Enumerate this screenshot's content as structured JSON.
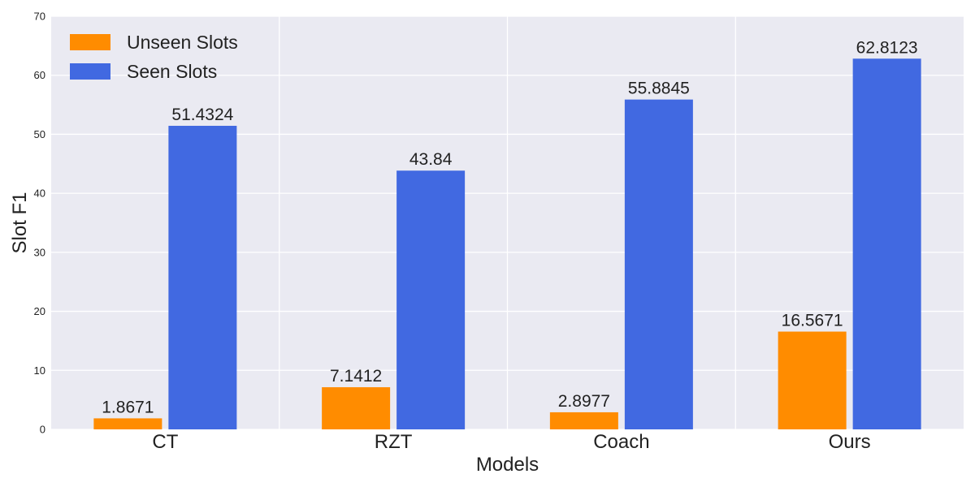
{
  "chart_data": {
    "type": "bar",
    "title": "",
    "xlabel": "Models",
    "ylabel": "Slot F1",
    "categories": [
      "CT",
      "RZT",
      "Coach",
      "Ours"
    ],
    "series": [
      {
        "name": "Unseen Slots",
        "color": "#FF8C00",
        "values": [
          1.8671,
          7.1412,
          2.8977,
          16.5671
        ],
        "labels": [
          "1.8671",
          "7.1412",
          "2.8977",
          "16.5671"
        ]
      },
      {
        "name": "Seen Slots",
        "color": "#4169E1",
        "values": [
          51.4324,
          43.84,
          55.8845,
          62.8123
        ],
        "labels": [
          "51.4324",
          "43.84",
          "55.8845",
          "62.8123"
        ]
      }
    ],
    "ylim": [
      0,
      70
    ],
    "yticks": [
      0,
      10,
      20,
      30,
      40,
      50,
      60,
      70
    ],
    "grid": true,
    "legend_position": "top-left",
    "background_color": "#EAEAF2"
  }
}
